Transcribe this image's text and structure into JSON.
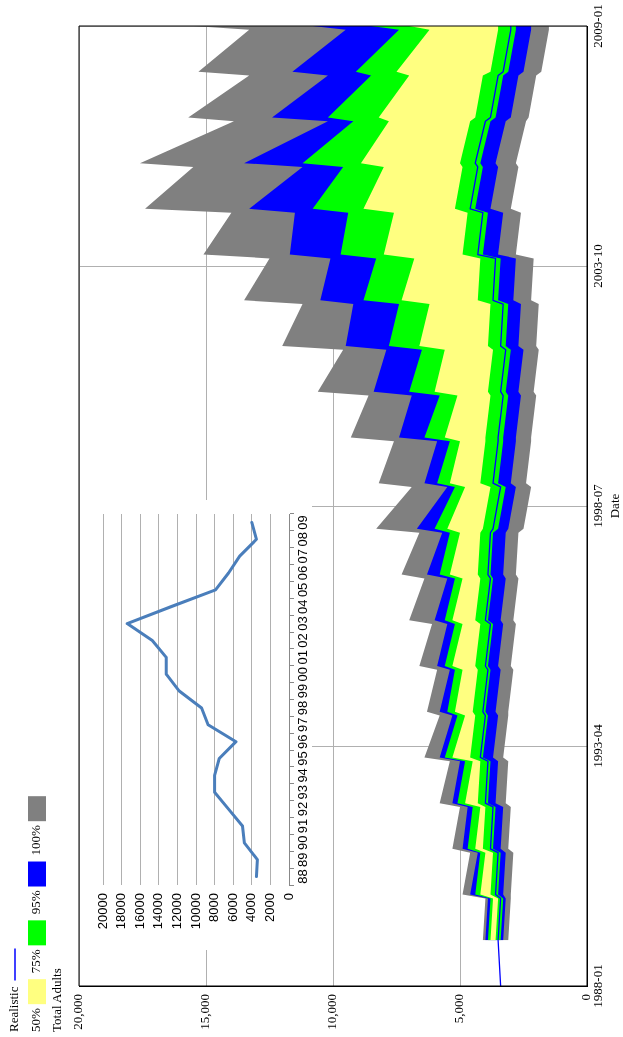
{
  "chart_data": [
    {
      "type": "area",
      "orientation": "horizontal",
      "ylabel": "Date",
      "legend": "bottom left",
      "legend_title": "Total Adults",
      "grid": true,
      "x": [
        "1988-01",
        "1989-01",
        "1989-12",
        "1990-01",
        "1990-12",
        "1991-01",
        "1991-12",
        "1992-01",
        "1992-12",
        "1993-01",
        "1993-12",
        "1994-01",
        "1994-12",
        "1995-01",
        "1995-12",
        "1996-01",
        "1996-12",
        "1997-01",
        "1997-12",
        "1998-01",
        "1998-12",
        "1999-01",
        "1999-12",
        "2000-01",
        "2000-12",
        "2001-01",
        "2001-12",
        "2002-01",
        "2002-12",
        "2003-01",
        "2003-12",
        "2004-01",
        "2004-12",
        "2005-01",
        "2005-12",
        "2006-01",
        "2006-12",
        "2007-01",
        "2007-12",
        "2008-01",
        "2008-12",
        "2009-01"
      ],
      "ylim": [
        "1988-01",
        "2009-01"
      ],
      "yticks": [
        "1988-01",
        "1993-04",
        "1998-07",
        "2003-10",
        "2009-01"
      ],
      "xlim": [
        20000,
        0
      ],
      "xticks": [
        {
          "value": 20000,
          "label": "20,000"
        },
        {
          "value": 15000,
          "label": "15,000"
        },
        {
          "value": 10000,
          "label": "10,000"
        },
        {
          "value": 5000,
          "label": "5,000"
        },
        0
      ],
      "series": [
        {
          "name": "Realistic",
          "type": "line",
          "color": "#0000ff",
          "values": [
            3400,
            3500,
            3400,
            3600,
            3500,
            3800,
            3700,
            4000,
            3900,
            4200,
            4000,
            4100,
            3900,
            4000,
            3800,
            4000,
            3800,
            3900,
            3800,
            3700,
            3400,
            3700,
            3500,
            3500,
            3300,
            3400,
            3200,
            3400,
            3300,
            3700,
            3600,
            4300,
            4100,
            4600,
            4300,
            4400,
            4000,
            3800,
            3500,
            3300,
            3000,
            3000
          ]
        },
        {
          "name": "50%",
          "type": "area",
          "color": "#ffff80",
          "values": [
            null,
            null,
            null,
            null,
            null,
            null,
            null,
            null,
            null,
            null,
            null,
            null,
            null,
            null,
            null,
            null,
            null,
            null,
            null,
            null,
            null,
            null,
            null,
            null,
            null,
            null,
            null,
            null,
            null,
            null,
            null,
            null,
            null,
            null,
            null,
            null,
            null,
            null,
            null,
            null,
            null,
            null
          ],
          "lower": [
            null,
            3600,
            3500,
            3800,
            3700,
            4100,
            4000,
            4300,
            4200,
            4600,
            4400,
            4500,
            4300,
            4400,
            4200,
            4400,
            4200,
            4300,
            4200,
            4100,
            3800,
            4200,
            4000,
            4000,
            3800,
            3900,
            3700,
            3900,
            3800,
            4300,
            4200,
            4900,
            4700,
            5200,
            4900,
            5000,
            4600,
            4400,
            4100,
            3800,
            3500,
            3500
          ],
          "upper": [
            null,
            3800,
            3700,
            4200,
            4000,
            4400,
            4200,
            4800,
            4500,
            5300,
            4800,
            5200,
            4900,
            5300,
            4900,
            5300,
            4900,
            5400,
            5000,
            5500,
            4800,
            5400,
            5000,
            5600,
            5100,
            6000,
            5600,
            6600,
            6200,
            7300,
            6800,
            8000,
            7600,
            8800,
            8000,
            8900,
            7800,
            8200,
            7000,
            7500,
            6200,
            7000
          ]
        },
        {
          "name": "75%",
          "type": "area",
          "color": "#00ff00",
          "values": [
            null,
            null,
            null,
            null,
            null,
            null,
            null,
            null,
            null,
            null,
            null,
            null,
            null,
            null,
            null,
            null,
            null,
            null,
            null,
            null,
            null,
            null,
            null,
            null,
            null,
            null,
            null,
            null,
            null,
            null,
            null,
            null,
            null,
            null,
            null,
            null,
            null,
            null,
            null,
            null,
            null,
            null
          ],
          "lower": [
            null,
            3400,
            3300,
            3500,
            3400,
            3700,
            3600,
            3900,
            3800,
            4100,
            3900,
            4000,
            3800,
            3900,
            3700,
            3900,
            3700,
            3800,
            3700,
            3500,
            3200,
            3500,
            3300,
            3300,
            3100,
            3200,
            3000,
            3200,
            3100,
            3500,
            3400,
            4100,
            3900,
            4400,
            4100,
            4200,
            3800,
            3600,
            3300,
            3100,
            2800,
            2800
          ],
          "upper": [
            null,
            3900,
            3800,
            4400,
            4200,
            4700,
            4500,
            5100,
            4800,
            5600,
            5100,
            5500,
            5200,
            5600,
            5200,
            5600,
            5200,
            5800,
            5400,
            6000,
            5200,
            5900,
            5400,
            6400,
            5800,
            7000,
            6500,
            7800,
            7400,
            8800,
            8300,
            9700,
            9400,
            10800,
            9600,
            11200,
            9200,
            10200,
            8500,
            9100,
            7400,
            8500
          ]
        },
        {
          "name": "95%",
          "type": "area",
          "color": "#0000ff",
          "values": [
            null,
            null,
            null,
            null,
            null,
            null,
            null,
            null,
            null,
            null,
            null,
            null,
            null,
            null,
            null,
            null,
            null,
            null,
            null,
            null,
            null,
            null,
            null,
            null,
            null,
            null,
            null,
            null,
            null,
            null,
            null,
            null,
            null,
            null,
            null,
            null,
            null,
            null,
            null,
            null,
            null,
            null
          ],
          "lower": [
            null,
            3300,
            3200,
            3300,
            3200,
            3400,
            3300,
            3600,
            3500,
            3700,
            3500,
            3600,
            3400,
            3500,
            3300,
            3400,
            3200,
            3300,
            3200,
            3100,
            2800,
            3000,
            2800,
            2800,
            2600,
            2700,
            2500,
            2700,
            2600,
            2900,
            2800,
            3500,
            3300,
            3800,
            3500,
            3600,
            3200,
            3000,
            2700,
            2500,
            2200,
            2200
          ],
          "upper": [
            null,
            4000,
            3900,
            4600,
            4300,
            4900,
            4700,
            5300,
            5000,
            5800,
            5300,
            5800,
            5400,
            5900,
            5500,
            6000,
            5500,
            6300,
            5700,
            6700,
            5500,
            6400,
            5900,
            7400,
            6900,
            8400,
            7900,
            9500,
            9200,
            10500,
            10100,
            11700,
            11500,
            13300,
            11200,
            13500,
            10200,
            12400,
            10200,
            11600,
            9500,
            10800
          ]
        },
        {
          "name": "100%",
          "type": "area",
          "color": "#808080",
          "values": [
            null,
            null,
            null,
            null,
            null,
            null,
            null,
            null,
            null,
            null,
            null,
            null,
            null,
            null,
            null,
            null,
            null,
            null,
            null,
            null,
            null,
            null,
            null,
            null,
            null,
            null,
            null,
            null,
            null,
            null,
            null,
            null,
            null,
            null,
            null,
            null,
            null,
            null,
            null,
            null,
            null,
            null
          ],
          "lower": [
            null,
            3100,
            3000,
            3000,
            2900,
            3100,
            3000,
            3200,
            3100,
            3300,
            3100,
            3100,
            2900,
            3000,
            2800,
            2900,
            2700,
            2800,
            2700,
            2500,
            2200,
            2400,
            2200,
            2200,
            2000,
            2100,
            1900,
            2000,
            1900,
            2200,
            2100,
            2800,
            2600,
            3000,
            2700,
            2800,
            2400,
            2300,
            2000,
            1800,
            1500,
            1500
          ],
          "upper": [
            null,
            4100,
            4000,
            4900,
            4600,
            5300,
            5000,
            5800,
            5400,
            6400,
            5800,
            6300,
            5900,
            6600,
            6100,
            7000,
            6400,
            7300,
            6600,
            8300,
            6900,
            8200,
            7600,
            9300,
            8600,
            10600,
            9600,
            12000,
            11200,
            13500,
            12500,
            15100,
            14000,
            17400,
            15500,
            17600,
            13900,
            15700,
            13300,
            15300,
            13300,
            15500
          ]
        }
      ]
    },
    {
      "type": "line",
      "orientation": "horizontal",
      "grid": "x",
      "color": "#4a7ebb",
      "categories": [
        "09",
        "08",
        "07",
        "06",
        "05",
        "04",
        "03",
        "02",
        "01",
        "00",
        "99",
        "98",
        "97",
        "96",
        "95",
        "94",
        "93",
        "92",
        "91",
        "90",
        "89",
        "88"
      ],
      "values": [
        4000,
        3500,
        5300,
        6500,
        7900,
        12700,
        17400,
        14700,
        13200,
        13200,
        11800,
        9400,
        8700,
        5700,
        7500,
        8000,
        8000,
        6500,
        5000,
        4800,
        3400,
        3500
      ],
      "xlim": [
        20000,
        0
      ],
      "xticks": [
        20000,
        18000,
        16000,
        14000,
        12000,
        10000,
        8000,
        6000,
        4000,
        2000,
        0
      ]
    }
  ]
}
